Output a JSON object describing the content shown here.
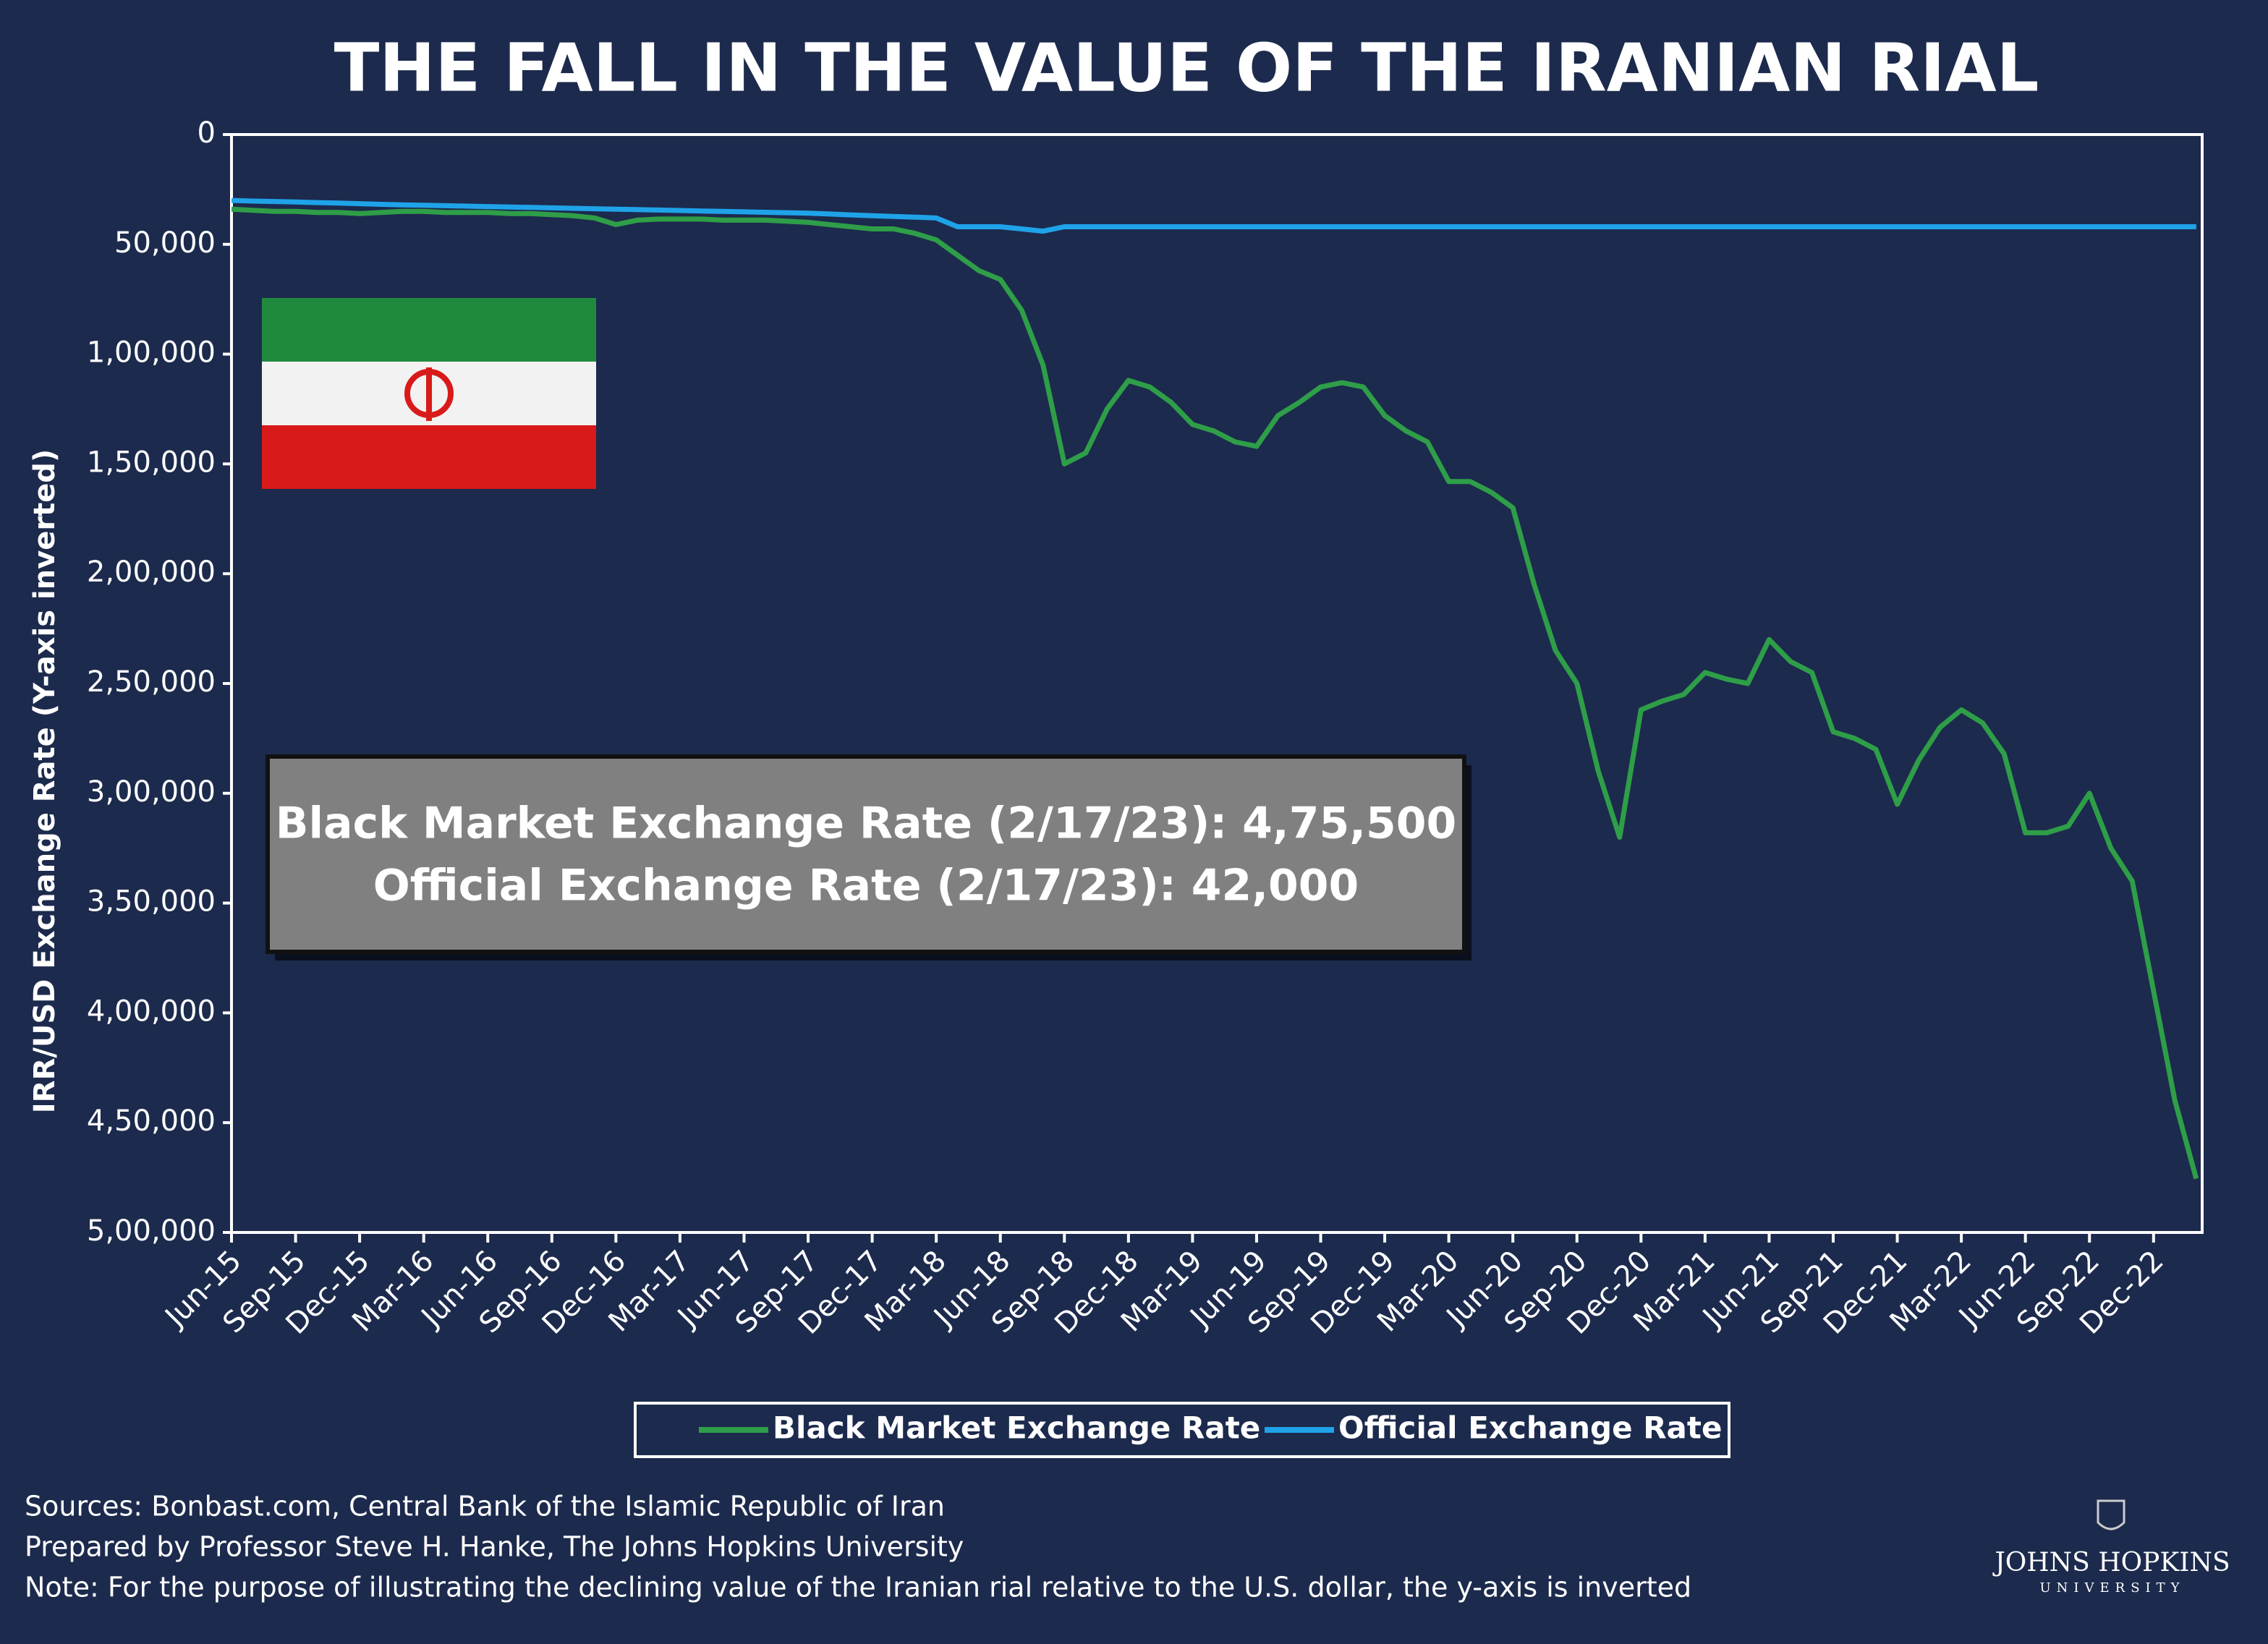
{
  "chart_data": {
    "type": "line",
    "title": "THE FALL IN THE VALUE OF THE IRANIAN RIAL",
    "y_label": "IRR/USD Exchange Rate (Y-axis inverted)",
    "y_inverted": true,
    "ylim": [
      0,
      500000
    ],
    "yticks": [
      0,
      {
        "value": 50000,
        "label": "50,000"
      },
      {
        "value": 100000,
        "label": "1,00,000"
      },
      {
        "value": 150000,
        "label": "1,50,000"
      },
      {
        "value": 200000,
        "label": "2,00,000"
      },
      {
        "value": 250000,
        "label": "2,50,000"
      },
      {
        "value": 300000,
        "label": "3,00,000"
      },
      {
        "value": 350000,
        "label": "3,50,000"
      },
      {
        "value": 400000,
        "label": "4,00,000"
      },
      {
        "value": 450000,
        "label": "4,50,000"
      },
      {
        "value": 500000,
        "label": "5,00,000"
      }
    ],
    "categories": [
      "Jun-15",
      null,
      null,
      "Sep-15",
      null,
      null,
      "Dec-15",
      null,
      null,
      "Mar-16",
      null,
      null,
      "Jun-16",
      null,
      null,
      "Sep-16",
      null,
      null,
      "Dec-16",
      null,
      null,
      "Mar-17",
      null,
      null,
      "Jun-17",
      null,
      null,
      "Sep-17",
      null,
      null,
      "Dec-17",
      null,
      null,
      "Mar-18",
      null,
      null,
      "Jun-18",
      null,
      null,
      "Sep-18",
      null,
      null,
      "Dec-18",
      null,
      null,
      "Mar-19",
      null,
      null,
      "Jun-19",
      null,
      null,
      "Sep-19",
      null,
      null,
      "Dec-19",
      null,
      null,
      "Mar-20",
      null,
      null,
      "Jun-20",
      null,
      null,
      "Sep-20",
      null,
      null,
      "Dec-20",
      null,
      null,
      "Mar-21",
      null,
      null,
      "Jun-21",
      null,
      null,
      "Sep-21",
      null,
      null,
      "Dec-21",
      null,
      null,
      "Mar-22",
      null,
      null,
      "Jun-22",
      null,
      null,
      "Sep-22",
      null,
      null,
      "Dec-22",
      null,
      null
    ],
    "series": [
      {
        "name": "Black Market Exchange Rate",
        "color": "#2e9e48",
        "values": [
          34000,
          34500,
          35000,
          35000,
          35500,
          35500,
          36000,
          35500,
          35000,
          35000,
          35500,
          35500,
          35500,
          36000,
          36000,
          36500,
          37000,
          38000,
          41000,
          39000,
          38500,
          38500,
          38500,
          39000,
          39000,
          39000,
          39500,
          40000,
          41000,
          42000,
          43000,
          43000,
          45000,
          48000,
          55000,
          62000,
          66000,
          80000,
          105000,
          150000,
          145000,
          125000,
          112000,
          115000,
          122000,
          132000,
          135000,
          140000,
          142000,
          128000,
          122000,
          115000,
          113000,
          115000,
          128000,
          135000,
          140000,
          158000,
          158000,
          163000,
          170000,
          205000,
          235000,
          250000,
          290000,
          320000,
          262000,
          258000,
          255000,
          245000,
          248000,
          250000,
          230000,
          240000,
          245000,
          272000,
          275000,
          280000,
          305000,
          285000,
          270000,
          262000,
          268000,
          282000,
          318000,
          318000,
          315000,
          300000,
          325000,
          340000,
          390000,
          440000,
          475500
        ]
      },
      {
        "name": "Official Exchange Rate",
        "color": "#1fa3e8",
        "values": [
          30000,
          30300,
          30500,
          30700,
          31000,
          31200,
          31500,
          31800,
          32000,
          32200,
          32400,
          32600,
          32800,
          33000,
          33200,
          33400,
          33600,
          33800,
          34000,
          34200,
          34400,
          34600,
          34800,
          35000,
          35200,
          35400,
          35600,
          35800,
          36200,
          36600,
          37000,
          37300,
          37600,
          38000,
          42000,
          42000,
          42000,
          43000,
          44000,
          42000,
          42000,
          42000,
          42000,
          42000,
          42000,
          42000,
          42000,
          42000,
          42000,
          42000,
          42000,
          42000,
          42000,
          42000,
          42000,
          42000,
          42000,
          42000,
          42000,
          42000,
          42000,
          42000,
          42000,
          42000,
          42000,
          42000,
          42000,
          42000,
          42000,
          42000,
          42000,
          42000,
          42000,
          42000,
          42000,
          42000,
          42000,
          42000,
          42000,
          42000,
          42000,
          42000,
          42000,
          42000,
          42000,
          42000,
          42000,
          42000,
          42000,
          42000,
          42000,
          42000,
          42000
        ]
      }
    ],
    "annotation": [
      "Black Market Exchange Rate (2/17/23): 4,75,500",
      "Official Exchange Rate (2/17/23): 42,000"
    ],
    "notes": [
      "Sources: Bonbast.com, Central Bank of the Islamic Republic of Iran",
      "Prepared by Professor Steve H. Hanke, The Johns Hopkins University",
      "Note: For the purpose of illustrating the declining value of the Iranian rial relative to the U.S. dollar, the y-axis is inverted"
    ],
    "logo": [
      "JOHNS HOPKINS",
      "UNIVERSITY"
    ]
  }
}
